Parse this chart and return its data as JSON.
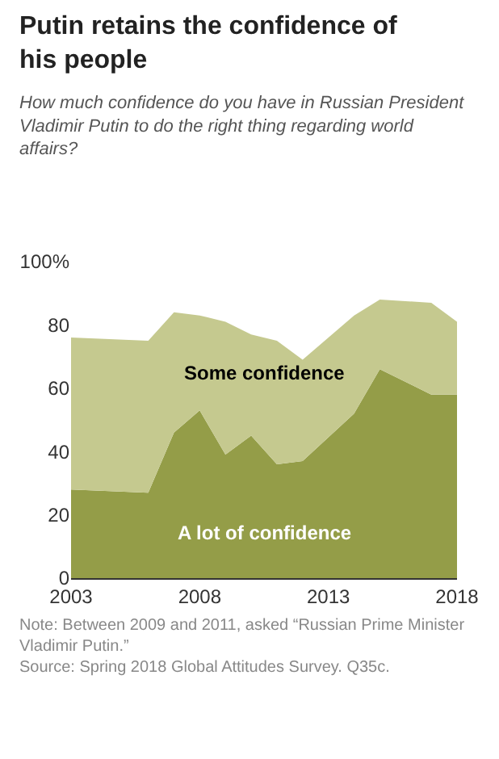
{
  "chart_data": {
    "type": "area",
    "stacked": true,
    "title": "Putin retains the confidence of his people",
    "subtitle": "How much confidence do you have in Russian President Vladimir Putin to do the right thing regarding world affairs?",
    "x": [
      2003,
      2006,
      2007,
      2008,
      2009,
      2010,
      2011,
      2012,
      2014,
      2015,
      2017,
      2018
    ],
    "series": [
      {
        "name": "A lot of confidence",
        "color": "#949d48",
        "values": [
          28,
          27,
          46,
          53,
          39,
          45,
          36,
          37,
          52,
          66,
          58,
          58
        ]
      },
      {
        "name": "Some confidence",
        "color": "#c5c98f",
        "values": [
          48,
          48,
          38,
          30,
          42,
          32,
          39,
          32,
          31,
          22,
          29,
          23
        ]
      }
    ],
    "xlim": [
      2003,
      2018
    ],
    "xticks": [
      2003,
      2008,
      2013,
      2018
    ],
    "ylim": [
      0,
      100
    ],
    "yticks": [
      0,
      20,
      40,
      60,
      80,
      {
        "value": 100,
        "label": "100%"
      }
    ],
    "legend": false,
    "annotations": [
      "Note: Between 2009 and 2011, asked “Russian Prime Minister Vladimir Putin.”",
      "Source: Spring 2018 Global Attitudes Survey. Q35c."
    ]
  }
}
